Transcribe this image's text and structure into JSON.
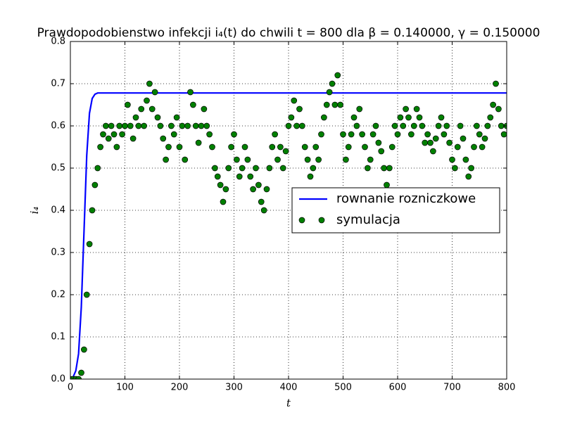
{
  "chart_data": {
    "type": "line",
    "title": "Prawdopodobienstwo infekcji i₄(t) do chwili t = 800 dla β = 0.140000, γ = 0.150000",
    "xlabel": "t",
    "ylabel": "i₄",
    "xlim": [
      0,
      800
    ],
    "ylim": [
      0,
      0.8
    ],
    "xticks": [
      0,
      100,
      200,
      300,
      400,
      500,
      600,
      700,
      800
    ],
    "yticks": [
      {
        "value": 0,
        "label": "0.0"
      },
      0.1,
      0.2,
      0.3,
      0.4,
      0.5,
      0.6,
      0.7,
      0.8
    ],
    "grid": true,
    "legend": "center right",
    "series": [
      {
        "name": "rownanie rozniczkowe",
        "type": "line",
        "color": "#0000ff",
        "x": [
          0,
          5,
          10,
          15,
          20,
          25,
          30,
          35,
          40,
          45,
          50,
          60,
          80,
          100,
          200,
          300,
          400,
          500,
          600,
          700,
          800
        ],
        "values": [
          0,
          0.005,
          0.02,
          0.06,
          0.17,
          0.35,
          0.53,
          0.63,
          0.665,
          0.675,
          0.678,
          0.678,
          0.678,
          0.678,
          0.678,
          0.678,
          0.678,
          0.678,
          0.678,
          0.678,
          0.678
        ]
      },
      {
        "name": "symulacja",
        "type": "scatter",
        "color": "#008000",
        "x": [
          0,
          5,
          10,
          15,
          20,
          25,
          30,
          35,
          40,
          45,
          50,
          55,
          60,
          65,
          70,
          75,
          80,
          85,
          90,
          95,
          100,
          105,
          110,
          115,
          120,
          125,
          130,
          135,
          140,
          145,
          150,
          155,
          160,
          165,
          170,
          175,
          180,
          185,
          190,
          195,
          200,
          205,
          210,
          215,
          220,
          225,
          230,
          235,
          240,
          245,
          250,
          255,
          260,
          265,
          270,
          275,
          280,
          285,
          290,
          295,
          300,
          305,
          310,
          315,
          320,
          325,
          330,
          335,
          340,
          345,
          350,
          355,
          360,
          365,
          370,
          375,
          380,
          385,
          390,
          395,
          400,
          405,
          410,
          415,
          420,
          425,
          430,
          435,
          440,
          445,
          450,
          455,
          460,
          465,
          470,
          475,
          480,
          485,
          490,
          495,
          500,
          505,
          510,
          515,
          520,
          525,
          530,
          535,
          540,
          545,
          550,
          555,
          560,
          565,
          570,
          575,
          580,
          585,
          590,
          595,
          600,
          605,
          610,
          615,
          620,
          625,
          630,
          635,
          640,
          645,
          650,
          655,
          660,
          665,
          670,
          675,
          680,
          685,
          690,
          695,
          700,
          705,
          710,
          715,
          720,
          725,
          730,
          735,
          740,
          745,
          750,
          755,
          760,
          765,
          770,
          775,
          780,
          785,
          790,
          795,
          800
        ],
        "values": [
          0,
          0,
          0,
          0,
          0.015,
          0.07,
          0.2,
          0.32,
          0.4,
          0.46,
          0.5,
          0.55,
          0.58,
          0.6,
          0.57,
          0.6,
          0.58,
          0.55,
          0.6,
          0.58,
          0.6,
          0.65,
          0.6,
          0.57,
          0.62,
          0.6,
          0.64,
          0.6,
          0.66,
          0.7,
          0.64,
          0.68,
          0.62,
          0.6,
          0.57,
          0.52,
          0.55,
          0.6,
          0.58,
          0.62,
          0.55,
          0.6,
          0.52,
          0.6,
          0.68,
          0.65,
          0.6,
          0.56,
          0.6,
          0.64,
          0.6,
          0.58,
          0.55,
          0.5,
          0.48,
          0.46,
          0.42,
          0.45,
          0.5,
          0.55,
          0.58,
          0.52,
          0.48,
          0.5,
          0.55,
          0.52,
          0.48,
          0.45,
          0.5,
          0.46,
          0.42,
          0.4,
          0.45,
          0.5,
          0.55,
          0.58,
          0.52,
          0.55,
          0.5,
          0.54,
          0.6,
          0.62,
          0.66,
          0.6,
          0.64,
          0.6,
          0.55,
          0.52,
          0.48,
          0.5,
          0.55,
          0.52,
          0.58,
          0.62,
          0.65,
          0.68,
          0.7,
          0.65,
          0.72,
          0.65,
          0.58,
          0.52,
          0.55,
          0.58,
          0.62,
          0.6,
          0.64,
          0.58,
          0.55,
          0.5,
          0.52,
          0.58,
          0.6,
          0.56,
          0.54,
          0.5,
          0.46,
          0.5,
          0.55,
          0.6,
          0.58,
          0.62,
          0.6,
          0.64,
          0.62,
          0.58,
          0.6,
          0.64,
          0.62,
          0.6,
          0.56,
          0.58,
          0.56,
          0.54,
          0.57,
          0.6,
          0.62,
          0.58,
          0.6,
          0.56,
          0.52,
          0.5,
          0.55,
          0.6,
          0.57,
          0.52,
          0.48,
          0.5,
          0.55,
          0.6,
          0.58,
          0.55,
          0.57,
          0.6,
          0.62,
          0.65,
          0.7,
          0.64,
          0.6,
          0.58,
          0.6
        ]
      }
    ]
  }
}
